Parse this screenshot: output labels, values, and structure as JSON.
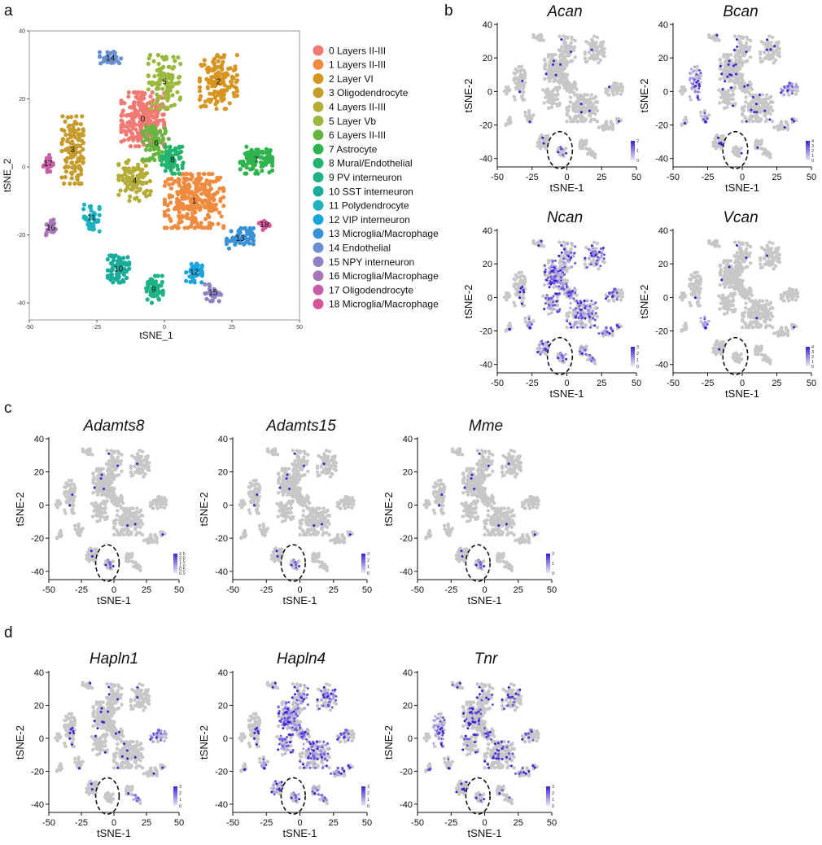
{
  "panel_letters": {
    "a": "a",
    "b": "b",
    "c": "c",
    "d": "d"
  },
  "colors": {
    "unexpressed": "#c7c7c7",
    "low": "#ddd6f3",
    "high": "#3b1fd6",
    "ellipse": "#111111"
  },
  "chart_data": [
    {
      "id": "a",
      "type": "scatter",
      "title": "",
      "xlabel": "tSNE_1",
      "ylabel": "tSNE_2",
      "xlim": [
        -50,
        50
      ],
      "ylim": [
        -45,
        40
      ],
      "xticks": [
        -50,
        -25,
        0,
        25,
        50
      ],
      "yticks": [
        -40,
        -20,
        0,
        20,
        40
      ],
      "grid": false,
      "legend": "right",
      "clusters": [
        {
          "id": 0,
          "label": "0",
          "name": "Layers II-III",
          "color": "#f07a73",
          "center": [
            -8,
            14
          ],
          "spread": [
            8,
            8
          ]
        },
        {
          "id": 1,
          "label": "1",
          "name": "Layers II-III",
          "color": "#ef8b3f",
          "center": [
            11,
            -10
          ],
          "spread": [
            11,
            8
          ]
        },
        {
          "id": 2,
          "label": "2",
          "name": "Layer VI",
          "color": "#d69520",
          "center": [
            20,
            25
          ],
          "spread": [
            7,
            8
          ]
        },
        {
          "id": 3,
          "label": "3",
          "name": "Oligodendrocyte",
          "color": "#c59b2b",
          "center": [
            -34,
            5
          ],
          "spread": [
            4,
            10
          ]
        },
        {
          "id": 4,
          "label": "4",
          "name": "Layers II-III",
          "color": "#b3ac37",
          "center": [
            -11,
            -4
          ],
          "spread": [
            6,
            6
          ]
        },
        {
          "id": 5,
          "label": "5",
          "name": "Layer Vb",
          "color": "#9ab83b",
          "center": [
            0,
            25
          ],
          "spread": [
            6,
            8
          ]
        },
        {
          "id": 6,
          "label": "6",
          "name": "Layers II-III",
          "color": "#66b541",
          "center": [
            -3,
            7
          ],
          "spread": [
            5,
            5
          ]
        },
        {
          "id": 7,
          "label": "7",
          "name": "Astrocyte",
          "color": "#2fb34d",
          "center": [
            34,
            2
          ],
          "spread": [
            6,
            4
          ]
        },
        {
          "id": 8,
          "label": "8",
          "name": "Mural/Endothelial",
          "color": "#22b36e",
          "center": [
            3,
            2
          ],
          "spread": [
            4,
            4
          ]
        },
        {
          "id": 9,
          "label": "9",
          "name": "PV interneuron",
          "color": "#1db386",
          "center": [
            -4,
            -36
          ],
          "spread": [
            3.5,
            4
          ]
        },
        {
          "id": 10,
          "label": "10",
          "name": "SST interneuron",
          "color": "#1aac9a",
          "center": [
            -17,
            -30
          ],
          "spread": [
            4,
            4
          ]
        },
        {
          "id": 11,
          "label": "11",
          "name": "Polydendrocyte",
          "color": "#1cb2bf",
          "center": [
            -27,
            -15
          ],
          "spread": [
            3,
            4
          ]
        },
        {
          "id": 12,
          "label": "12",
          "name": "VIP interneuron",
          "color": "#1aa5dc",
          "center": [
            11,
            -31
          ],
          "spread": [
            3,
            3
          ]
        },
        {
          "id": 13,
          "label": "13",
          "name": "Microglia/Macrophage",
          "color": "#3a91d6",
          "center": [
            28,
            -21
          ],
          "spread": [
            5,
            3
          ]
        },
        {
          "id": 14,
          "label": "14",
          "name": "Endothelial",
          "color": "#6a8fd1",
          "center": [
            -20,
            32
          ],
          "spread": [
            4,
            2
          ]
        },
        {
          "id": 15,
          "label": "15",
          "name": "NPY interneuron",
          "color": "#9180c4",
          "center": [
            18,
            -37
          ],
          "spread": [
            3,
            2.5
          ]
        },
        {
          "id": 16,
          "label": "16",
          "name": "Microglia/Macrophage",
          "color": "#a875b8",
          "center": [
            -42,
            -18
          ],
          "spread": [
            1.8,
            2.5
          ]
        },
        {
          "id": 17,
          "label": "17",
          "name": "Oligodendrocyte",
          "color": "#c65fa6",
          "center": [
            -43,
            1
          ],
          "spread": [
            1.8,
            2.5
          ]
        },
        {
          "id": 18,
          "label": "18",
          "name": "Microglia/Macrophage",
          "color": "#d8559a",
          "center": [
            37,
            -17
          ],
          "spread": [
            2,
            1.5
          ]
        }
      ]
    },
    {
      "id": "Acan",
      "type": "scatter",
      "title": "Acan",
      "xlabel": "tSNE-1",
      "ylabel": "tSNE-2",
      "xlim": [
        -50,
        50
      ],
      "ylim": [
        -45,
        40
      ],
      "xticks": [
        -50,
        -25,
        0,
        25,
        50
      ],
      "yticks": [
        -40,
        -20,
        0,
        20,
        40
      ],
      "colorbar": {
        "ticks": [
          "2",
          "1",
          "0"
        ]
      },
      "highlight_ellipse": {
        "center": [
          -5,
          -35
        ],
        "radii": [
          5,
          6
        ]
      },
      "expression": "low-sparse"
    },
    {
      "id": "Bcan",
      "type": "scatter",
      "title": "Bcan",
      "xlabel": "tSNE-1",
      "ylabel": "tSNE-2",
      "xlim": [
        -50,
        50
      ],
      "ylim": [
        -45,
        40
      ],
      "xticks": [
        -50,
        -25,
        0,
        25,
        50
      ],
      "yticks": [
        -40,
        -20,
        0,
        20,
        40
      ],
      "colorbar": {
        "ticks": [
          "4",
          "3",
          "2",
          "1",
          "0"
        ]
      },
      "highlight_ellipse": {
        "center": [
          -5,
          -35
        ],
        "radii": [
          5,
          6
        ]
      },
      "expression": "oligo-astro"
    },
    {
      "id": "Ncan",
      "type": "scatter",
      "title": "Ncan",
      "xlabel": "tSNE-1",
      "ylabel": "tSNE-2",
      "xlim": [
        -50,
        50
      ],
      "ylim": [
        -45,
        40
      ],
      "xticks": [
        -50,
        -25,
        0,
        25,
        50
      ],
      "yticks": [
        -40,
        -20,
        0,
        20,
        40
      ],
      "colorbar": {
        "ticks": [
          "3",
          "2",
          "1",
          "0"
        ]
      },
      "highlight_ellipse": {
        "center": [
          -5,
          -35
        ],
        "radii": [
          5,
          6
        ]
      },
      "expression": "broad"
    },
    {
      "id": "Vcan",
      "type": "scatter",
      "title": "Vcan",
      "xlabel": "tSNE-1",
      "ylabel": "tSNE-2",
      "xlim": [
        -50,
        50
      ],
      "ylim": [
        -45,
        40
      ],
      "xticks": [
        -50,
        -25,
        0,
        25,
        50
      ],
      "yticks": [
        -40,
        -20,
        0,
        20,
        40
      ],
      "colorbar": {
        "ticks": [
          "4",
          "3",
          "2",
          "1",
          "0"
        ]
      },
      "highlight_ellipse": {
        "center": [
          -5,
          -35
        ],
        "radii": [
          5,
          6
        ]
      },
      "expression": "polydendrocyte"
    },
    {
      "id": "Adamts8",
      "type": "scatter",
      "title": "Adamts8",
      "xlabel": "tSNE-1",
      "ylabel": "tSNE-2",
      "xlim": [
        -50,
        50
      ],
      "ylim": [
        -45,
        40
      ],
      "xticks": [
        -50,
        -25,
        0,
        25,
        50
      ],
      "yticks": [
        -40,
        -20,
        0,
        20,
        40
      ],
      "colorbar": {
        "ticks": [
          "2.5",
          "2.0",
          "1.5",
          "1.0",
          "0.5",
          "0.0"
        ]
      },
      "highlight_ellipse": {
        "center": [
          -5,
          -35
        ],
        "radii": [
          5,
          6
        ]
      },
      "expression": "pv"
    },
    {
      "id": "Adamts15",
      "type": "scatter",
      "title": "Adamts15",
      "xlabel": "tSNE-1",
      "ylabel": "tSNE-2",
      "xlim": [
        -50,
        50
      ],
      "ylim": [
        -45,
        40
      ],
      "xticks": [
        -50,
        -25,
        0,
        25,
        50
      ],
      "yticks": [
        -40,
        -20,
        0,
        20,
        40
      ],
      "colorbar": {
        "ticks": [
          "3",
          "2",
          "1",
          "0"
        ]
      },
      "highlight_ellipse": {
        "center": [
          -5,
          -35
        ],
        "radii": [
          5,
          6
        ]
      },
      "expression": "pv"
    },
    {
      "id": "Mme",
      "type": "scatter",
      "title": "Mme",
      "xlabel": "tSNE-1",
      "ylabel": "tSNE-2",
      "xlim": [
        -50,
        50
      ],
      "ylim": [
        -45,
        40
      ],
      "xticks": [
        -50,
        -25,
        0,
        25,
        50
      ],
      "yticks": [
        -40,
        -20,
        0,
        20,
        40
      ],
      "colorbar": {
        "ticks": [
          "2",
          "1",
          "0"
        ]
      },
      "highlight_ellipse": {
        "center": [
          -5,
          -35
        ],
        "radii": [
          5,
          6
        ]
      },
      "expression": "pv"
    },
    {
      "id": "Hapln1",
      "type": "scatter",
      "title": "Hapln1",
      "xlabel": "tSNE-1",
      "ylabel": "tSNE-2",
      "xlim": [
        -50,
        50
      ],
      "ylim": [
        -45,
        40
      ],
      "xticks": [
        -50,
        -25,
        0,
        25,
        50
      ],
      "yticks": [
        -40,
        -20,
        0,
        20,
        40
      ],
      "colorbar": {
        "ticks": [
          "3",
          "2",
          "1",
          "0"
        ]
      },
      "highlight_ellipse": {
        "center": [
          -5,
          -35
        ],
        "radii": [
          5,
          6
        ]
      },
      "expression": "astro-npy"
    },
    {
      "id": "Hapln4",
      "type": "scatter",
      "title": "Hapln4",
      "xlabel": "tSNE-1",
      "ylabel": "tSNE-2",
      "xlim": [
        -50,
        50
      ],
      "ylim": [
        -45,
        40
      ],
      "xticks": [
        -50,
        -25,
        0,
        25,
        50
      ],
      "yticks": [
        -40,
        -20,
        0,
        20,
        40
      ],
      "colorbar": {
        "ticks": [
          "3",
          "2",
          "1",
          "0"
        ]
      },
      "highlight_ellipse": {
        "center": [
          -5,
          -35
        ],
        "radii": [
          5,
          6
        ]
      },
      "expression": "broad"
    },
    {
      "id": "Tnr",
      "type": "scatter",
      "title": "Tnr",
      "xlabel": "tSNE-1",
      "ylabel": "tSNE-2",
      "xlim": [
        -50,
        50
      ],
      "ylim": [
        -45,
        40
      ],
      "xticks": [
        -50,
        -25,
        0,
        25,
        50
      ],
      "yticks": [
        -40,
        -20,
        0,
        20,
        40
      ],
      "colorbar": {
        "ticks": [
          "3",
          "2",
          "1",
          "0"
        ]
      },
      "highlight_ellipse": {
        "center": [
          -5,
          -35
        ],
        "radii": [
          5,
          6
        ]
      },
      "expression": "neuronal-oligo"
    }
  ]
}
